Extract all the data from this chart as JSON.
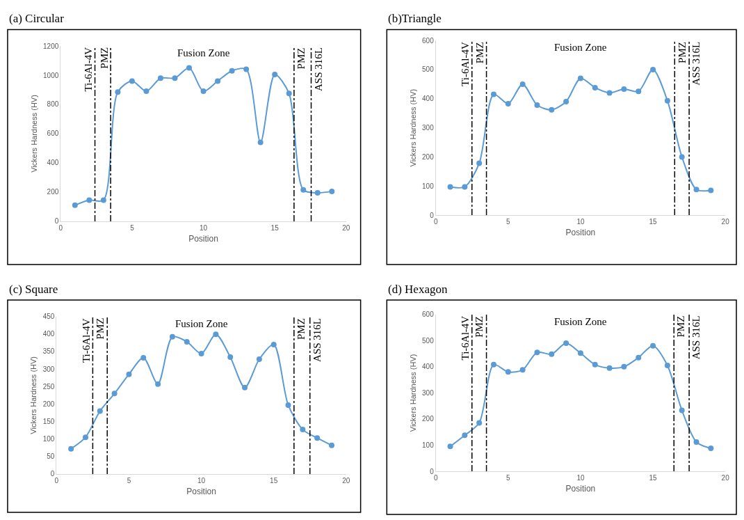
{
  "chart_data": [
    {
      "type": "line",
      "title": "(a) Circular",
      "xlabel": "Position",
      "ylabel": "Vickers Hardness (HV)",
      "x": [
        1,
        2,
        3,
        4,
        5,
        6,
        7,
        8,
        9,
        10,
        11,
        12,
        13,
        14,
        15,
        16,
        17,
        18,
        19
      ],
      "series": [
        {
          "color": "#5b9bd5",
          "values": [
            110,
            145,
            145,
            885,
            960,
            890,
            980,
            980,
            1050,
            890,
            960,
            1030,
            1040,
            540,
            1005,
            875,
            215,
            195,
            205
          ]
        }
      ],
      "xlim": [
        0,
        20
      ],
      "xticks": [
        0,
        5,
        10,
        15,
        20
      ],
      "ylim": [
        0,
        1200
      ],
      "yticks": [
        0,
        200,
        400,
        600,
        800,
        1000,
        1200
      ],
      "marker": "circle",
      "line_style": "solid",
      "ref_lines": [
        {
          "axis": "x",
          "value": 2.4,
          "label": "Ti-6Al-4V",
          "color": "#000000",
          "line_style": "dashed"
        },
        {
          "axis": "x",
          "value": 3.5,
          "label": "PMZ",
          "color": "#000000",
          "line_style": "dashed"
        },
        {
          "axis": "x",
          "value": 16.35,
          "label": "PMZ",
          "color": "#000000",
          "line_style": "dashed"
        },
        {
          "axis": "x",
          "value": 17.55,
          "label": "ASS 316L",
          "color": "#000000",
          "line_style": "dashed"
        }
      ],
      "annotations": [
        "Fusion Zone"
      ]
    },
    {
      "type": "line",
      "title": "(b)Triangle",
      "xlabel": "Position",
      "ylabel": "Vickers Hardness (HV)",
      "x": [
        1,
        2,
        3,
        4,
        5,
        6,
        7,
        8,
        9,
        10,
        11,
        12,
        13,
        14,
        15,
        16,
        17,
        18,
        19
      ],
      "series": [
        {
          "color": "#5b9bd5",
          "values": [
            97,
            97,
            178,
            415,
            383,
            450,
            378,
            362,
            390,
            470,
            438,
            420,
            433,
            425,
            500,
            393,
            200,
            88,
            85
          ]
        }
      ],
      "xlim": [
        0,
        20
      ],
      "xticks": [
        0,
        5,
        10,
        15,
        20
      ],
      "ylim": [
        0,
        600
      ],
      "yticks": [
        0,
        100,
        200,
        300,
        400,
        500,
        600
      ],
      "marker": "circle",
      "line_style": "solid",
      "ref_lines": [
        {
          "axis": "x",
          "value": 2.5,
          "label": "Ti-6Al-4V",
          "color": "#000000",
          "line_style": "dashed"
        },
        {
          "axis": "x",
          "value": 3.5,
          "label": "PMZ",
          "color": "#000000",
          "line_style": "dashed"
        },
        {
          "axis": "x",
          "value": 16.5,
          "label": "PMZ",
          "color": "#000000",
          "line_style": "dashed"
        },
        {
          "axis": "x",
          "value": 17.5,
          "label": "ASS 316L",
          "color": "#000000",
          "line_style": "dashed"
        }
      ],
      "annotations": [
        "Fusion Zone"
      ]
    },
    {
      "type": "line",
      "title": "(c) Square",
      "xlabel": "Position",
      "ylabel": "Vickers Hardness (HV)",
      "x": [
        1,
        2,
        3,
        4,
        5,
        6,
        7,
        8,
        9,
        10,
        11,
        12,
        13,
        14,
        15,
        16,
        17,
        18,
        19
      ],
      "series": [
        {
          "color": "#5b9bd5",
          "values": [
            72,
            105,
            180,
            230,
            285,
            332,
            257,
            392,
            378,
            344,
            399,
            334,
            247,
            328,
            370,
            197,
            127,
            103,
            82
          ]
        }
      ],
      "xlim": [
        0,
        20
      ],
      "xticks": [
        0,
        5,
        10,
        15,
        20
      ],
      "ylim": [
        0,
        450
      ],
      "yticks": [
        0,
        50,
        100,
        150,
        200,
        250,
        300,
        350,
        400,
        450
      ],
      "marker": "circle",
      "line_style": "solid",
      "ref_lines": [
        {
          "axis": "x",
          "value": 2.5,
          "label": "Ti-6Al-4V",
          "color": "#000000",
          "line_style": "dashed"
        },
        {
          "axis": "x",
          "value": 3.5,
          "label": "PMZ",
          "color": "#000000",
          "line_style": "dashed"
        },
        {
          "axis": "x",
          "value": 16.4,
          "label": "PMZ",
          "color": "#000000",
          "line_style": "dashed"
        },
        {
          "axis": "x",
          "value": 17.5,
          "label": "ASS 316L",
          "color": "#000000",
          "line_style": "dashed"
        }
      ],
      "annotations": [
        "Fusion Zone"
      ]
    },
    {
      "type": "line",
      "title": "(d) Hexagon",
      "xlabel": "Position",
      "ylabel": "Vickers Hardness (HV)",
      "x": [
        1,
        2,
        3,
        4,
        5,
        6,
        7,
        8,
        9,
        10,
        11,
        12,
        13,
        14,
        15,
        16,
        17,
        18,
        19
      ],
      "series": [
        {
          "color": "#5b9bd5",
          "values": [
            95,
            138,
            185,
            408,
            380,
            388,
            455,
            448,
            490,
            452,
            408,
            395,
            400,
            435,
            480,
            405,
            233,
            112,
            88
          ]
        }
      ],
      "xlim": [
        0,
        20
      ],
      "xticks": [
        0,
        5,
        10,
        15,
        20
      ],
      "ylim": [
        0,
        600
      ],
      "yticks": [
        0,
        100,
        200,
        300,
        400,
        500,
        600
      ],
      "marker": "circle",
      "line_style": "solid",
      "ref_lines": [
        {
          "axis": "x",
          "value": 2.5,
          "label": "Ti-6Al-4V",
          "color": "#000000",
          "line_style": "dashed"
        },
        {
          "axis": "x",
          "value": 3.5,
          "label": "PMZ",
          "color": "#000000",
          "line_style": "dashed"
        },
        {
          "axis": "x",
          "value": 16.45,
          "label": "PMZ",
          "color": "#000000",
          "line_style": "dashed"
        },
        {
          "axis": "x",
          "value": 17.5,
          "label": "ASS 316L",
          "color": "#000000",
          "line_style": "dashed"
        }
      ],
      "annotations": [
        "Fusion Zone"
      ]
    }
  ]
}
